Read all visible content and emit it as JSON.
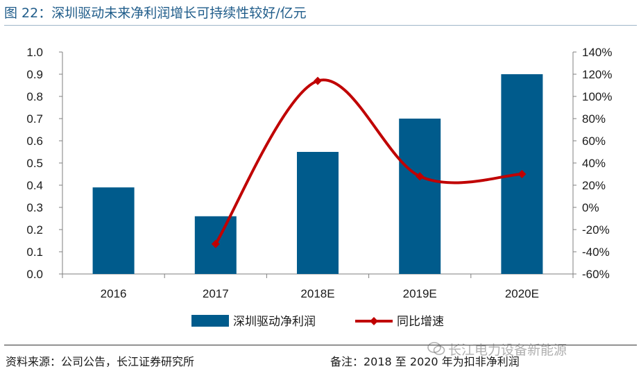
{
  "header": {
    "title": "图 22：深圳驱动未来净利润增长可持续性较好/亿元"
  },
  "footer": {
    "source": "资料来源：公司公告，长江证券研究所",
    "note": "备注：2018 至 2020 年为扣非净利润",
    "watermark": "长江电力设备新能源"
  },
  "colors": {
    "bar": "#005b8c",
    "line": "#c00000",
    "title": "#1f5c8a"
  },
  "chart_data": {
    "type": "bar",
    "categories": [
      "2016",
      "2017",
      "2018E",
      "2019E",
      "2020E"
    ],
    "series": [
      {
        "name": "深圳驱动净利润",
        "type": "bar",
        "axis": "left",
        "values": [
          0.39,
          0.26,
          0.55,
          0.7,
          0.9
        ]
      },
      {
        "name": "同比增速",
        "type": "line",
        "axis": "right",
        "smooth": true,
        "values": [
          null,
          -33,
          114,
          28,
          30
        ]
      }
    ],
    "y_left": {
      "lim": [
        0,
        1.0
      ],
      "ticks": [
        "0.0",
        "0.1",
        "0.2",
        "0.3",
        "0.4",
        "0.5",
        "0.6",
        "0.7",
        "0.8",
        "0.9",
        "1.0"
      ]
    },
    "y_right": {
      "lim": [
        -60,
        140
      ],
      "ticks": [
        "-60%",
        "-40%",
        "-20%",
        "0%",
        "20%",
        "40%",
        "60%",
        "80%",
        "100%",
        "120%",
        "140%"
      ]
    },
    "grid": false,
    "legend_position": "bottom"
  }
}
